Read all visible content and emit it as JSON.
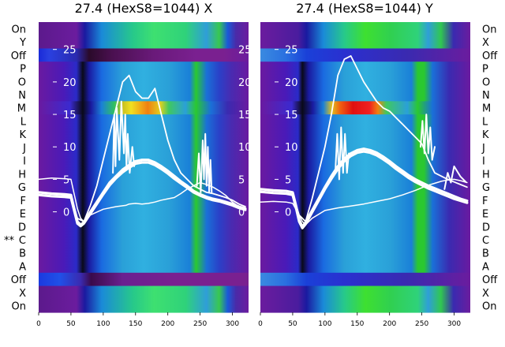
{
  "chart_data": [
    {
      "type": "heatmap",
      "title": "27.4 (HexS8=1044) X",
      "xlabel": "",
      "ylabel": "",
      "x_ticks": [
        0,
        50,
        100,
        150,
        200,
        250,
        300
      ],
      "xlim": [
        0,
        325
      ],
      "overlay_ticks": [
        25,
        20,
        15,
        10,
        5,
        0
      ],
      "overlay_ylim": [
        -6,
        28
      ],
      "row_labels": [
        "On",
        "Y",
        "Off",
        "P",
        "O",
        "N",
        "M",
        "L",
        "K",
        "J",
        "I",
        "H",
        "G",
        "F",
        "E",
        "D",
        "C",
        "B",
        "A",
        "Off",
        "X",
        "On"
      ],
      "row_markers": [
        {
          "row": "C",
          "text": "**"
        }
      ],
      "series": [
        {
          "name": "",
          "kind": "thin",
          "x": [
            0,
            20,
            40,
            50,
            60,
            65,
            70,
            80,
            100,
            120,
            135,
            140,
            150,
            160,
            170,
            180,
            190,
            200,
            210,
            220,
            230,
            240,
            250,
            260,
            270,
            280,
            290,
            300,
            310,
            320
          ],
          "y": [
            5,
            5.2,
            5.1,
            5,
            0.5,
            -1,
            -1.5,
            -0.5,
            0.4,
            0.8,
            1,
            1.2,
            1.3,
            1.2,
            1.3,
            1.5,
            1.8,
            2,
            2.2,
            2.8,
            3.5,
            4,
            4.5,
            4.2,
            3.8,
            3.2,
            2.5,
            1.5,
            0.8,
            0.6
          ]
        },
        {
          "name": "",
          "kind": "thick",
          "x": [
            0,
            20,
            40,
            50,
            55,
            60,
            65,
            70,
            80,
            90,
            100,
            110,
            120,
            130,
            140,
            150,
            160,
            170,
            180,
            190,
            200,
            210,
            220,
            230,
            240,
            250,
            260,
            270,
            280,
            290,
            300,
            310,
            320
          ],
          "y": [
            3,
            2.8,
            2.7,
            2.6,
            0.5,
            -1.5,
            -2,
            -1.6,
            0,
            1.5,
            3,
            4.5,
            5.5,
            6.5,
            7.2,
            7.8,
            8,
            8,
            7.6,
            7,
            6.3,
            5.5,
            4.7,
            4,
            3.2,
            2.7,
            2.3,
            2,
            1.8,
            1.5,
            1.2,
            0.8,
            0.5
          ]
        },
        {
          "name": "",
          "kind": "thick",
          "x": [
            0,
            20,
            40,
            50,
            55,
            60,
            65,
            70,
            80,
            90,
            100,
            110,
            120,
            130,
            140,
            150,
            160,
            170,
            180,
            190,
            200,
            210,
            220,
            230,
            240,
            250,
            260,
            270,
            280,
            290,
            300,
            310,
            320
          ],
          "y": [
            2.6,
            2.4,
            2.3,
            2.2,
            0.2,
            -1.8,
            -2.2,
            -1.8,
            -0.3,
            1.2,
            2.7,
            4.1,
            5.2,
            6.1,
            6.8,
            7.4,
            7.6,
            7.6,
            7.2,
            6.6,
            5.9,
            5.1,
            4.4,
            3.7,
            3,
            2.5,
            2.1,
            1.8,
            1.6,
            1.3,
            1,
            0.6,
            0.3
          ]
        },
        {
          "name": "",
          "kind": "peak",
          "x": [
            0,
            40,
            50,
            60,
            70,
            80,
            90,
            100,
            110,
            120,
            130,
            140,
            150,
            160,
            170,
            180,
            190,
            200,
            210,
            220,
            230,
            240,
            250,
            260,
            270,
            280,
            290,
            300,
            310,
            320
          ],
          "y": [
            3,
            2.6,
            2.4,
            -1,
            -1.5,
            1,
            4,
            8,
            12,
            16,
            20,
            21,
            18.5,
            17.5,
            17.5,
            19,
            15,
            11,
            8,
            6,
            5,
            4,
            3.5,
            3,
            2.8,
            2.5,
            2.2,
            1.8,
            1.2,
            0.8
          ]
        },
        {
          "name": "",
          "kind": "spike",
          "x": [
            115,
            117,
            119,
            121,
            125,
            128,
            132,
            134,
            136,
            138,
            141,
            145,
            148
          ],
          "y": [
            6,
            15,
            7,
            16,
            8,
            17,
            9,
            15,
            7,
            12,
            6,
            10,
            7
          ]
        },
        {
          "name": "",
          "kind": "spike",
          "x": [
            245,
            248,
            251,
            254,
            256,
            258,
            260,
            262,
            264,
            266,
            268
          ],
          "y": [
            4,
            9,
            3,
            11,
            5,
            12,
            4,
            10,
            3,
            8,
            3
          ]
        }
      ]
    },
    {
      "type": "heatmap",
      "title": "27.4 (HexS8=1044) Y",
      "xlabel": "",
      "ylabel": "",
      "x_ticks": [
        0,
        50,
        100,
        150,
        200,
        250,
        300
      ],
      "xlim": [
        0,
        325
      ],
      "overlay_ticks": [
        25,
        20,
        15,
        10,
        5,
        0
      ],
      "overlay_ylim": [
        -6,
        28
      ],
      "row_labels": [
        "On",
        "X",
        "Off",
        "P",
        "O",
        "N",
        "M",
        "L",
        "K",
        "J",
        "I",
        "H",
        "G",
        "F",
        "E",
        "D",
        "C",
        "B",
        "A",
        "Off",
        "X",
        "On"
      ],
      "series": [
        {
          "name": "",
          "kind": "thin",
          "x": [
            0,
            20,
            40,
            50,
            60,
            65,
            70,
            80,
            100,
            120,
            140,
            160,
            180,
            200,
            220,
            240,
            250,
            260,
            270,
            280,
            290,
            300,
            310,
            320
          ],
          "y": [
            1.5,
            1.6,
            1.5,
            1.3,
            -0.5,
            -1.5,
            -2,
            -1,
            0.2,
            0.6,
            0.9,
            1.2,
            1.6,
            2,
            2.6,
            3.3,
            3.7,
            4.1,
            4.4,
            4.7,
            4.9,
            5,
            4.8,
            4.5
          ]
        },
        {
          "name": "",
          "kind": "thick",
          "x": [
            0,
            20,
            40,
            50,
            55,
            60,
            65,
            70,
            80,
            90,
            100,
            110,
            120,
            130,
            140,
            150,
            160,
            170,
            180,
            190,
            200,
            210,
            220,
            230,
            240,
            250,
            260,
            270,
            280,
            290,
            300,
            310,
            320
          ],
          "y": [
            3.5,
            3.3,
            3.2,
            3,
            1,
            -1.2,
            -2.3,
            -1.6,
            0.2,
            2,
            3.8,
            5.5,
            7,
            8.2,
            9,
            9.5,
            9.7,
            9.5,
            9.1,
            8.5,
            7.8,
            7,
            6.3,
            5.6,
            5,
            4.5,
            4,
            3.6,
            3.2,
            2.8,
            2.4,
            2,
            1.7
          ]
        },
        {
          "name": "",
          "kind": "thick",
          "x": [
            0,
            20,
            40,
            50,
            55,
            60,
            65,
            70,
            80,
            90,
            100,
            110,
            120,
            130,
            140,
            150,
            160,
            170,
            180,
            190,
            200,
            210,
            220,
            230,
            240,
            250,
            260,
            270,
            280,
            290,
            300,
            310,
            320
          ],
          "y": [
            3.1,
            2.9,
            2.8,
            2.6,
            0.7,
            -1.5,
            -2.5,
            -1.9,
            -0.1,
            1.7,
            3.5,
            5.1,
            6.6,
            7.8,
            8.6,
            9.1,
            9.3,
            9.1,
            8.7,
            8.1,
            7.4,
            6.6,
            5.9,
            5.2,
            4.6,
            4.1,
            3.6,
            3.2,
            2.8,
            2.4,
            2,
            1.7,
            1.4
          ]
        },
        {
          "name": "",
          "kind": "peak",
          "x": [
            0,
            40,
            50,
            60,
            70,
            80,
            90,
            100,
            110,
            120,
            130,
            140,
            150,
            160,
            170,
            180,
            190,
            200,
            210,
            220,
            230,
            240,
            250,
            260,
            270,
            280,
            290,
            300,
            310,
            320
          ],
          "y": [
            3,
            2.8,
            2.6,
            -0.5,
            -1.5,
            2,
            6,
            10,
            15,
            21,
            23.5,
            24,
            22,
            20,
            18.5,
            17,
            16,
            15.5,
            14.5,
            13.5,
            12.5,
            11.5,
            10.5,
            8,
            6,
            5.5,
            5,
            4.6,
            4.2,
            3.8
          ]
        },
        {
          "name": "",
          "kind": "spike",
          "x": [
            116,
            119,
            122,
            125,
            128,
            131,
            134,
            137
          ],
          "y": [
            6,
            12,
            5,
            13,
            6,
            12,
            6,
            9
          ]
        },
        {
          "name": "",
          "kind": "spike",
          "x": [
            248,
            251,
            254,
            257,
            260,
            263,
            266,
            270
          ],
          "y": [
            10,
            14,
            9,
            15,
            9,
            13,
            8,
            10
          ]
        },
        {
          "name": "",
          "kind": "spike",
          "x": [
            285,
            290,
            295,
            300,
            305,
            310,
            318
          ],
          "y": [
            3.5,
            6,
            4.5,
            7,
            6.2,
            5.4,
            4.6
          ]
        }
      ]
    }
  ]
}
